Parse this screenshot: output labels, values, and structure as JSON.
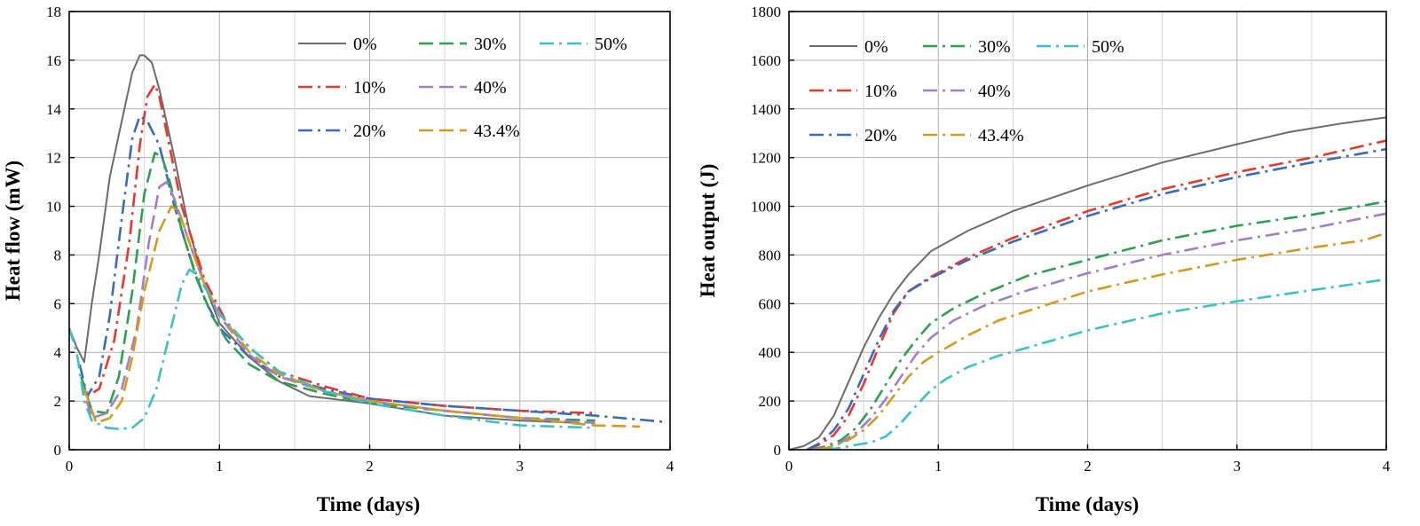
{
  "chart_data": [
    {
      "type": "line",
      "title": "",
      "xlabel": "Time (days)",
      "ylabel": "Heat flow (mW)",
      "xlim": [
        0,
        4
      ],
      "ylim": [
        0,
        18
      ],
      "xticks": [
        0,
        1,
        2,
        3,
        4
      ],
      "yticks": [
        0,
        2,
        4,
        6,
        8,
        10,
        12,
        14,
        16,
        18
      ],
      "grid": true,
      "legend_placement": "top-right",
      "series": [
        {
          "name": "0%",
          "color": "#6b6b6b",
          "dash": "solid",
          "x": [
            0,
            0.05,
            0.1,
            0.15,
            0.2,
            0.27,
            0.35,
            0.42,
            0.47,
            0.5,
            0.55,
            0.6,
            0.7,
            0.8,
            0.9,
            1.0,
            1.2,
            1.4,
            1.6,
            2.0,
            2.5,
            3.0,
            3.4
          ],
          "y": [
            5.0,
            4.2,
            3.6,
            6.0,
            8.0,
            11.2,
            13.5,
            15.5,
            16.2,
            16.2,
            15.9,
            14.8,
            12.0,
            9.0,
            6.8,
            5.2,
            3.8,
            2.8,
            2.2,
            1.9,
            1.4,
            1.2,
            1.1
          ]
        },
        {
          "name": "10%",
          "color": "#e8382e",
          "dash": "dashdot",
          "x": [
            0.08,
            0.12,
            0.2,
            0.3,
            0.4,
            0.47,
            0.52,
            0.57,
            0.6,
            0.65,
            0.75,
            0.9,
            1.05,
            1.2,
            1.4,
            1.7,
            2.0,
            2.5,
            3.0,
            3.5
          ],
          "y": [
            3.0,
            2.2,
            2.5,
            4.5,
            8.5,
            12.5,
            14.5,
            15.0,
            14.5,
            13.0,
            10.0,
            7.0,
            5.2,
            4.2,
            3.2,
            2.6,
            2.1,
            1.8,
            1.6,
            1.5
          ]
        },
        {
          "name": "20%",
          "color": "#3a6ab8",
          "dash": "dashdot",
          "x": [
            0.07,
            0.12,
            0.2,
            0.27,
            0.35,
            0.42,
            0.47,
            0.52,
            0.6,
            0.7,
            0.8,
            0.9,
            1.0,
            1.2,
            1.4,
            1.7,
            2.0,
            2.5,
            3.0,
            3.5,
            3.95
          ],
          "y": [
            3.5,
            2.2,
            3.0,
            5.5,
            9.5,
            12.8,
            13.7,
            13.5,
            12.5,
            10.0,
            8.0,
            6.2,
            5.0,
            3.8,
            3.0,
            2.5,
            2.1,
            1.8,
            1.6,
            1.4,
            1.15
          ]
        },
        {
          "name": "30%",
          "color": "#2e9e52",
          "dash": "dashed",
          "x": [
            0.08,
            0.15,
            0.25,
            0.33,
            0.42,
            0.5,
            0.57,
            0.62,
            0.67,
            0.75,
            0.85,
            0.95,
            1.05,
            1.2,
            1.4,
            1.7,
            2.0,
            2.5,
            3.0,
            3.5
          ],
          "y": [
            3.0,
            1.6,
            1.5,
            3.0,
            6.5,
            10.5,
            12.2,
            12.0,
            11.0,
            9.0,
            7.0,
            5.5,
            4.5,
            3.5,
            2.8,
            2.3,
            1.9,
            1.6,
            1.3,
            1.2
          ]
        },
        {
          "name": "40%",
          "color": "#a17fc4",
          "dash": "dashed",
          "x": [
            0.08,
            0.15,
            0.25,
            0.35,
            0.45,
            0.53,
            0.6,
            0.65,
            0.7,
            0.8,
            0.9,
            1.0,
            1.2,
            1.4,
            1.7,
            2.0,
            2.5,
            3.0,
            3.5
          ],
          "y": [
            2.8,
            1.3,
            1.5,
            2.5,
            5.0,
            8.5,
            10.8,
            11.0,
            10.3,
            8.5,
            6.8,
            5.5,
            3.9,
            3.0,
            2.4,
            2.0,
            1.6,
            1.3,
            1.1
          ]
        },
        {
          "name": "43.4%",
          "color": "#d19a20",
          "dash": "dashed",
          "x": [
            0.1,
            0.18,
            0.27,
            0.35,
            0.42,
            0.5,
            0.6,
            0.68,
            0.73,
            0.8,
            0.9,
            1.0,
            1.2,
            1.4,
            1.7,
            2.0,
            2.5,
            3.0,
            3.5,
            3.8
          ],
          "y": [
            2.5,
            1.1,
            1.3,
            2.0,
            3.8,
            6.5,
            9.0,
            10.0,
            9.8,
            8.5,
            6.8,
            5.6,
            4.0,
            3.1,
            2.4,
            2.0,
            1.6,
            1.3,
            1.0,
            0.95
          ]
        },
        {
          "name": "50%",
          "color": "#3cc0c8",
          "dash": "dashdot",
          "x": [
            0,
            0.05,
            0.1,
            0.15,
            0.25,
            0.33,
            0.42,
            0.5,
            0.58,
            0.67,
            0.75,
            0.8,
            0.85,
            0.92,
            1.0,
            1.2,
            1.4,
            1.7,
            2.0,
            2.5,
            3.0,
            3.5
          ],
          "y": [
            5.0,
            4.0,
            2.0,
            1.2,
            0.9,
            0.85,
            0.9,
            1.3,
            2.5,
            4.8,
            6.8,
            7.4,
            7.2,
            6.5,
            5.6,
            4.2,
            3.2,
            2.4,
            1.9,
            1.4,
            1.0,
            0.9
          ]
        }
      ]
    },
    {
      "type": "line",
      "title": "",
      "xlabel": "Time (days)",
      "ylabel": "Heat output (J)",
      "xlim": [
        0,
        4
      ],
      "ylim": [
        0,
        1800
      ],
      "xticks": [
        0,
        1,
        2,
        3,
        4
      ],
      "yticks": [
        0,
        200,
        400,
        600,
        800,
        1000,
        1200,
        1400,
        1600,
        1800
      ],
      "grid": true,
      "legend_placement": "top-left",
      "series": [
        {
          "name": "0%",
          "color": "#6b6b6b",
          "dash": "solid",
          "x": [
            0,
            0.1,
            0.2,
            0.3,
            0.4,
            0.5,
            0.6,
            0.7,
            0.8,
            0.95,
            1.2,
            1.5,
            2.0,
            2.5,
            3.0,
            3.35,
            3.7,
            4.0
          ],
          "y": [
            0,
            15,
            50,
            140,
            280,
            420,
            540,
            640,
            720,
            815,
            900,
            980,
            1085,
            1180,
            1255,
            1305,
            1340,
            1365
          ]
        },
        {
          "name": "10%",
          "color": "#e8382e",
          "dash": "dashdot",
          "x": [
            0.12,
            0.2,
            0.3,
            0.4,
            0.5,
            0.6,
            0.7,
            0.8,
            0.95,
            1.2,
            1.5,
            2.0,
            2.5,
            3.0,
            3.5,
            4.0
          ],
          "y": [
            0,
            20,
            60,
            140,
            270,
            420,
            560,
            650,
            710,
            790,
            870,
            980,
            1070,
            1140,
            1200,
            1270
          ]
        },
        {
          "name": "20%",
          "color": "#3a6ab8",
          "dash": "dashdot",
          "x": [
            0.12,
            0.2,
            0.3,
            0.4,
            0.5,
            0.6,
            0.7,
            0.8,
            0.95,
            1.2,
            1.5,
            2.0,
            2.5,
            3.0,
            3.5,
            4.0
          ],
          "y": [
            0,
            25,
            80,
            170,
            310,
            450,
            570,
            650,
            705,
            780,
            855,
            960,
            1050,
            1120,
            1180,
            1235
          ]
        },
        {
          "name": "30%",
          "color": "#2e9e52",
          "dash": "dashdot",
          "x": [
            0.15,
            0.25,
            0.35,
            0.45,
            0.55,
            0.65,
            0.75,
            0.85,
            0.95,
            1.1,
            1.3,
            1.6,
            2.0,
            2.5,
            3.0,
            3.5,
            4.0
          ],
          "y": [
            0,
            15,
            40,
            90,
            170,
            270,
            370,
            450,
            520,
            580,
            640,
            715,
            780,
            860,
            920,
            965,
            1020
          ]
        },
        {
          "name": "40%",
          "color": "#a17fc4",
          "dash": "dashdot",
          "x": [
            0.15,
            0.25,
            0.35,
            0.45,
            0.55,
            0.65,
            0.75,
            0.85,
            0.95,
            1.1,
            1.3,
            1.6,
            2.0,
            2.5,
            3.0,
            3.5,
            4.0
          ],
          "y": [
            0,
            10,
            30,
            70,
            130,
            210,
            300,
            390,
            460,
            530,
            590,
            655,
            725,
            800,
            860,
            910,
            970
          ]
        },
        {
          "name": "43.4%",
          "color": "#d19a20",
          "dash": "dashdot",
          "x": [
            0.2,
            0.3,
            0.4,
            0.5,
            0.6,
            0.7,
            0.8,
            0.9,
            1.0,
            1.2,
            1.4,
            1.7,
            2.0,
            2.5,
            3.0,
            3.5,
            3.85,
            4.0
          ],
          "y": [
            0,
            15,
            40,
            80,
            140,
            220,
            300,
            360,
            400,
            470,
            530,
            590,
            650,
            720,
            780,
            830,
            860,
            890
          ]
        },
        {
          "name": "50%",
          "color": "#3cc0c8",
          "dash": "dashdot",
          "x": [
            0.25,
            0.35,
            0.45,
            0.55,
            0.65,
            0.75,
            0.85,
            0.95,
            1.05,
            1.2,
            1.4,
            1.6,
            1.8,
            2.0,
            2.5,
            3.0,
            3.5,
            4.0
          ],
          "y": [
            0,
            8,
            20,
            30,
            55,
            110,
            180,
            245,
            290,
            340,
            385,
            420,
            455,
            490,
            560,
            610,
            655,
            700
          ]
        }
      ]
    }
  ]
}
